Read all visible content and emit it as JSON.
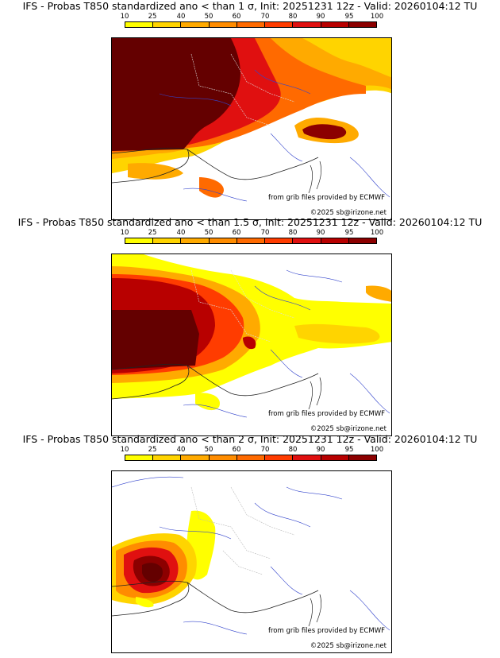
{
  "colorbar": {
    "labels": [
      "10",
      "25",
      "40",
      "50",
      "60",
      "70",
      "80",
      "90",
      "95",
      "100"
    ],
    "colors": [
      "#ffff00",
      "#ffd400",
      "#ffaa00",
      "#ff8c00",
      "#ff6a00",
      "#ff3c00",
      "#e01010",
      "#b80000",
      "#8c0000",
      "#640000"
    ]
  },
  "panels": [
    {
      "title": "IFS - Probas T850  standardized ano < than 1 σ, Init: 20251231 12z - Valid: 20260104:12 TU",
      "credit_source": "from grib files provided by ECMWF",
      "credit_copyright": "©2025 sb@irizone.net"
    },
    {
      "title": "IFS - Probas T850  standardized ano < than 1.5 σ, Init: 20251231 12z - Valid: 20260104:12 TU",
      "credit_source": "from grib files provided by ECMWF",
      "credit_copyright": "©2025 sb@irizone.net"
    },
    {
      "title": "IFS - Probas T850  standardized ano < than 2 σ, Init: 20251231 12z - Valid: 20260104:12 TU",
      "credit_source": "from grib files provided by ECMWF",
      "credit_copyright": "©2025 sb@irizone.net"
    }
  ]
}
